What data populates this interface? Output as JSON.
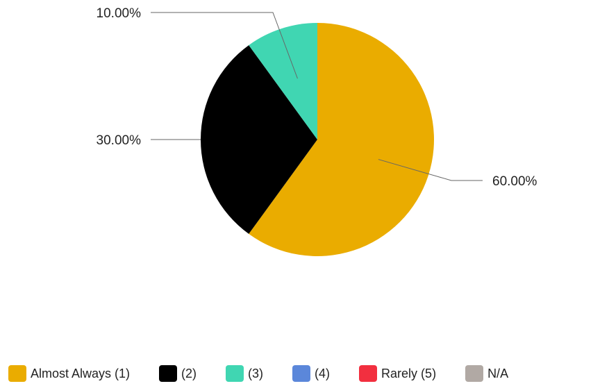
{
  "chart_data": {
    "type": "pie",
    "slices": [
      {
        "label": "Almost Always (1)",
        "value": 60,
        "value_label": "60.00%",
        "color": "#EAAC00"
      },
      {
        "label": "(2)",
        "value": 30,
        "value_label": "30.00%",
        "color": "#000000"
      },
      {
        "label": "(3)",
        "value": 10,
        "value_label": "10.00%",
        "color": "#40D6B2"
      },
      {
        "label": "(4)",
        "value": 0,
        "value_label": "",
        "color": "#5B87DA"
      },
      {
        "label": "Rarely (5)",
        "value": 0,
        "value_label": "",
        "color": "#F22F3F"
      },
      {
        "label": "N/A",
        "value": 0,
        "value_label": "",
        "color": "#B1A9A4"
      }
    ],
    "legend_position": "bottom"
  }
}
